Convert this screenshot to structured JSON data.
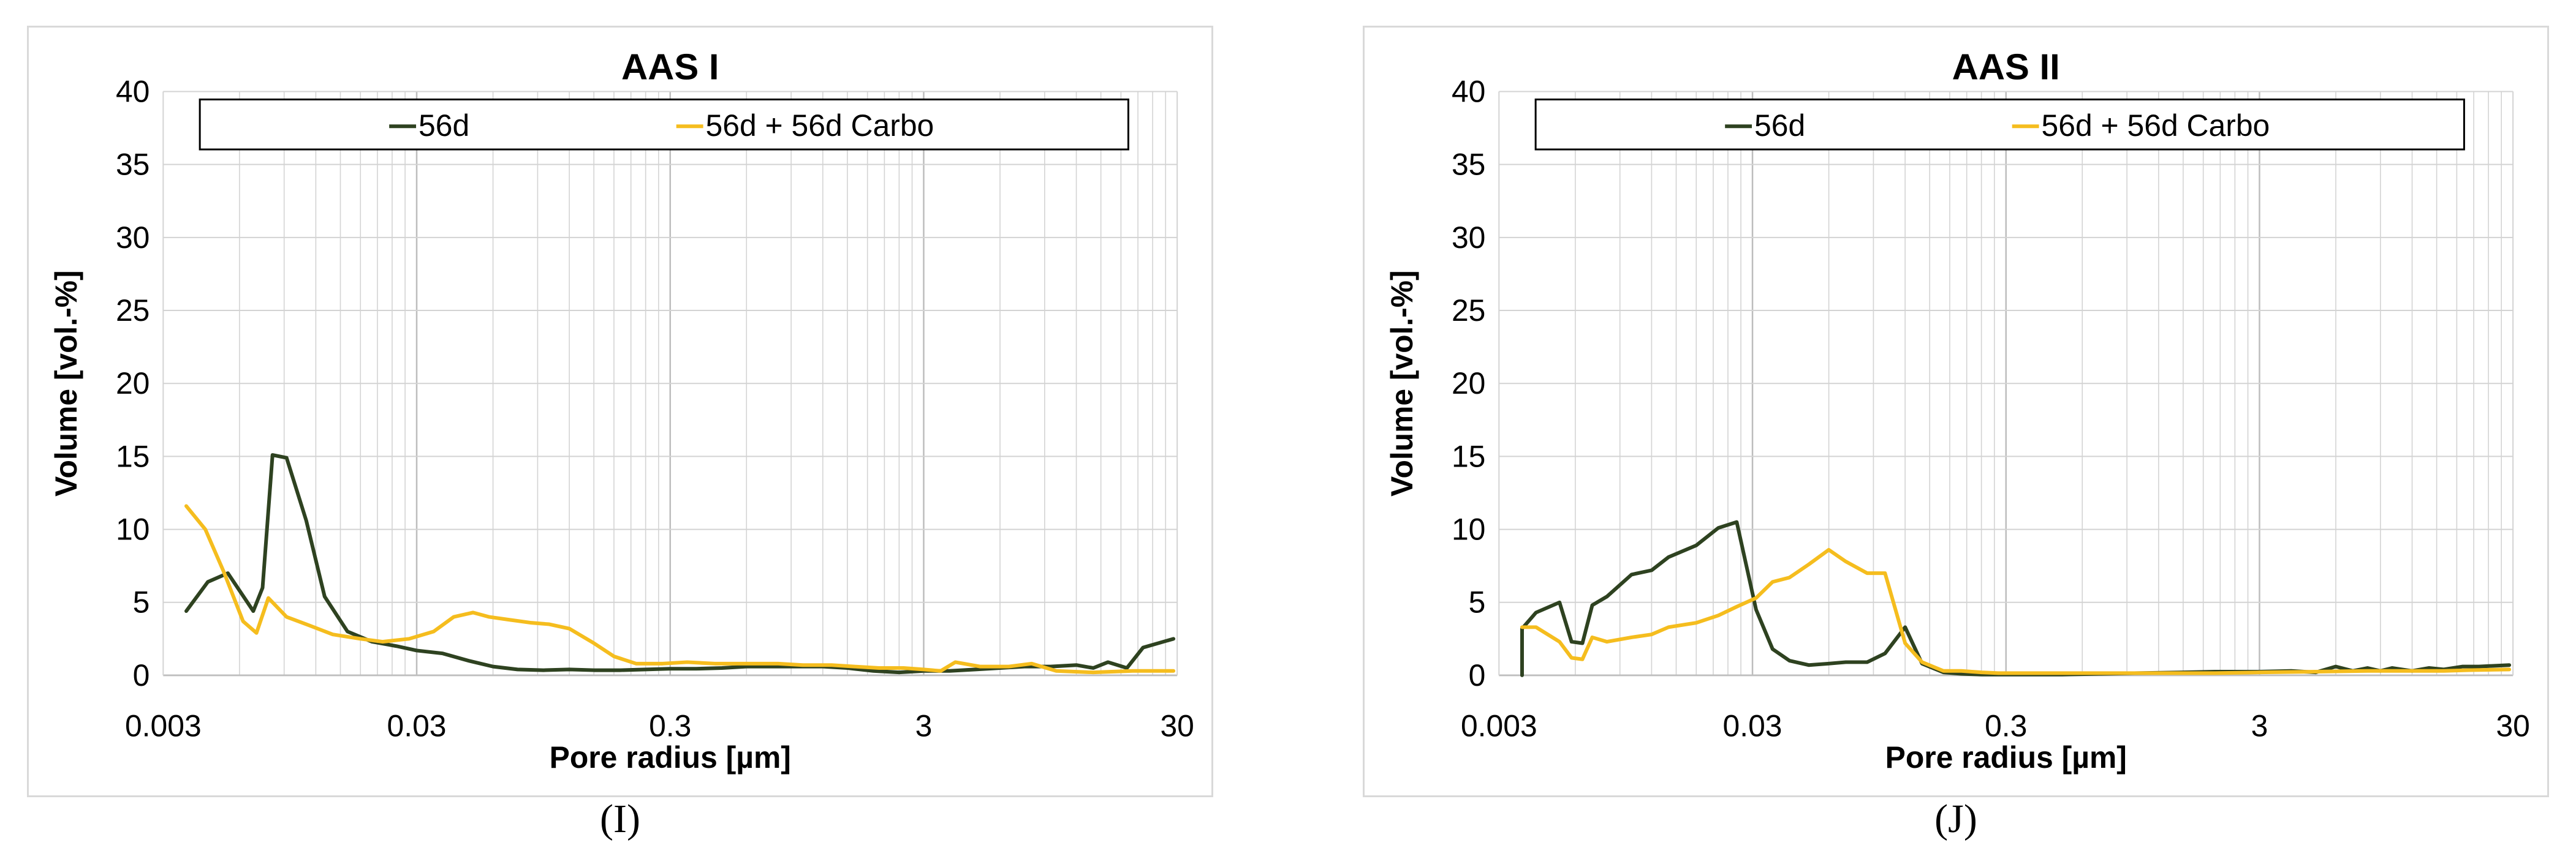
{
  "colors": {
    "series_dark": "#2e4220",
    "series_gold": "#f5bd1e",
    "grid": "#d3d3d3",
    "axis": "#bfbfbf"
  },
  "chart_data": [
    {
      "type": "line",
      "title": "AAS I",
      "caption": "(I)",
      "xlabel": "Pore radius [µm]",
      "ylabel": "Volume [vol.-%]",
      "xscale": "log",
      "xlim": [
        0.003,
        30
      ],
      "ylim": [
        0,
        40
      ],
      "xticks": [
        0.003,
        0.03,
        0.3,
        3,
        30
      ],
      "xtick_labels": [
        "0.003",
        "0.03",
        "0.3",
        "3",
        "30"
      ],
      "yticks": [
        0,
        5,
        10,
        15,
        20,
        25,
        30,
        35,
        40
      ],
      "ytick_labels": [
        "0",
        "5",
        "10",
        "15",
        "20",
        "25",
        "30",
        "35",
        "40"
      ],
      "grid": true,
      "legend": "top, inside, boxed",
      "series": [
        {
          "name": "56d",
          "color": "#2e4220",
          "x": [
            0.0037,
            0.0045,
            0.0054,
            0.0068,
            0.0074,
            0.0081,
            0.0092,
            0.011,
            0.013,
            0.016,
            0.02,
            0.025,
            0.03,
            0.038,
            0.048,
            0.06,
            0.075,
            0.095,
            0.12,
            0.15,
            0.19,
            0.24,
            0.3,
            0.38,
            0.48,
            0.6,
            0.75,
            0.95,
            1.2,
            1.5,
            1.9,
            2.4,
            3.0,
            3.8,
            4.8,
            6.0,
            7.5,
            9.5,
            12,
            14,
            16,
            19,
            22,
            29
          ],
          "y": [
            4.4,
            6.4,
            7.0,
            4.4,
            6.0,
            15.1,
            14.9,
            10.6,
            5.4,
            3.0,
            2.3,
            2.0,
            1.7,
            1.5,
            1.0,
            0.6,
            0.4,
            0.35,
            0.4,
            0.35,
            0.35,
            0.4,
            0.45,
            0.45,
            0.5,
            0.6,
            0.6,
            0.6,
            0.6,
            0.5,
            0.3,
            0.2,
            0.3,
            0.3,
            0.4,
            0.5,
            0.6,
            0.6,
            0.7,
            0.5,
            0.9,
            0.5,
            1.9,
            2.5
          ]
        },
        {
          "name": "56d + 56d Carbo",
          "color": "#f5bd1e",
          "x": [
            0.0037,
            0.0044,
            0.0052,
            0.0062,
            0.007,
            0.0078,
            0.0092,
            0.011,
            0.014,
            0.018,
            0.022,
            0.028,
            0.035,
            0.042,
            0.05,
            0.058,
            0.07,
            0.085,
            0.1,
            0.12,
            0.15,
            0.18,
            0.22,
            0.28,
            0.35,
            0.45,
            0.6,
            0.8,
            1.0,
            1.3,
            1.6,
            2.0,
            2.5,
            3.0,
            3.5,
            4.0,
            5.0,
            6.5,
            8.0,
            10,
            14,
            20,
            29
          ],
          "y": [
            11.6,
            10.0,
            7.1,
            3.7,
            2.9,
            5.3,
            4.0,
            3.5,
            2.8,
            2.5,
            2.3,
            2.5,
            3.0,
            4.0,
            4.3,
            4.0,
            3.8,
            3.6,
            3.5,
            3.2,
            2.2,
            1.3,
            0.8,
            0.8,
            0.9,
            0.8,
            0.8,
            0.8,
            0.7,
            0.7,
            0.6,
            0.5,
            0.5,
            0.4,
            0.3,
            0.9,
            0.6,
            0.6,
            0.8,
            0.3,
            0.2,
            0.3,
            0.3
          ]
        }
      ]
    },
    {
      "type": "line",
      "title": "AAS II",
      "caption": "(J)",
      "xlabel": "Pore radius [µm]",
      "ylabel": "Volume [vol.-%]",
      "xscale": "log",
      "xlim": [
        0.003,
        30
      ],
      "ylim": [
        0,
        40
      ],
      "xticks": [
        0.003,
        0.03,
        0.3,
        3,
        30
      ],
      "xtick_labels": [
        "0.003",
        "0.03",
        "0.3",
        "3",
        "30"
      ],
      "yticks": [
        0,
        5,
        10,
        15,
        20,
        25,
        30,
        35,
        40
      ],
      "ytick_labels": [
        "0",
        "5",
        "10",
        "15",
        "20",
        "25",
        "30",
        "35",
        "40"
      ],
      "grid": true,
      "legend": "top, inside, boxed",
      "series": [
        {
          "name": "56d",
          "color": "#2e4220",
          "x": [
            0.0037,
            0.0037,
            0.0042,
            0.0052,
            0.0058,
            0.0064,
            0.007,
            0.008,
            0.01,
            0.012,
            0.014,
            0.018,
            0.022,
            0.026,
            0.031,
            0.036,
            0.042,
            0.05,
            0.06,
            0.07,
            0.085,
            0.1,
            0.12,
            0.14,
            0.17,
            0.2,
            0.24,
            0.28,
            0.33,
            0.4,
            0.5,
            0.7,
            1.0,
            1.5,
            2.0,
            3.0,
            4.0,
            5.0,
            6.0,
            7.0,
            8.0,
            9.0,
            10,
            12,
            14,
            16,
            19,
            22,
            29
          ],
          "y": [
            0,
            3.2,
            4.3,
            5.0,
            2.3,
            2.2,
            4.8,
            5.4,
            6.9,
            7.2,
            8.1,
            8.9,
            10.1,
            10.5,
            4.5,
            1.8,
            1.0,
            0.7,
            0.8,
            0.9,
            0.9,
            1.5,
            3.3,
            0.8,
            0.2,
            0.1,
            0.05,
            0.05,
            0.05,
            0.05,
            0.05,
            0.1,
            0.15,
            0.2,
            0.25,
            0.25,
            0.3,
            0.2,
            0.6,
            0.3,
            0.5,
            0.3,
            0.5,
            0.3,
            0.5,
            0.4,
            0.6,
            0.6,
            0.7
          ]
        },
        {
          "name": "56d + 56d Carbo",
          "color": "#f5bd1e",
          "x": [
            0.0037,
            0.0042,
            0.0052,
            0.0058,
            0.0064,
            0.007,
            0.008,
            0.01,
            0.012,
            0.014,
            0.018,
            0.022,
            0.026,
            0.031,
            0.036,
            0.042,
            0.05,
            0.06,
            0.07,
            0.085,
            0.1,
            0.12,
            0.14,
            0.17,
            0.2,
            0.24,
            0.28,
            0.33,
            0.4,
            0.5,
            0.7,
            1.0,
            1.5,
            2.0,
            3.0,
            5.0,
            8.0,
            12,
            16,
            20,
            29
          ],
          "y": [
            3.3,
            3.3,
            2.3,
            1.2,
            1.1,
            2.6,
            2.3,
            2.6,
            2.8,
            3.3,
            3.6,
            4.1,
            4.7,
            5.3,
            6.4,
            6.7,
            7.6,
            8.6,
            7.8,
            7.0,
            7.0,
            2.2,
            0.9,
            0.3,
            0.3,
            0.2,
            0.15,
            0.15,
            0.15,
            0.15,
            0.15,
            0.15,
            0.15,
            0.15,
            0.2,
            0.25,
            0.3,
            0.3,
            0.3,
            0.35,
            0.4
          ]
        }
      ]
    }
  ]
}
